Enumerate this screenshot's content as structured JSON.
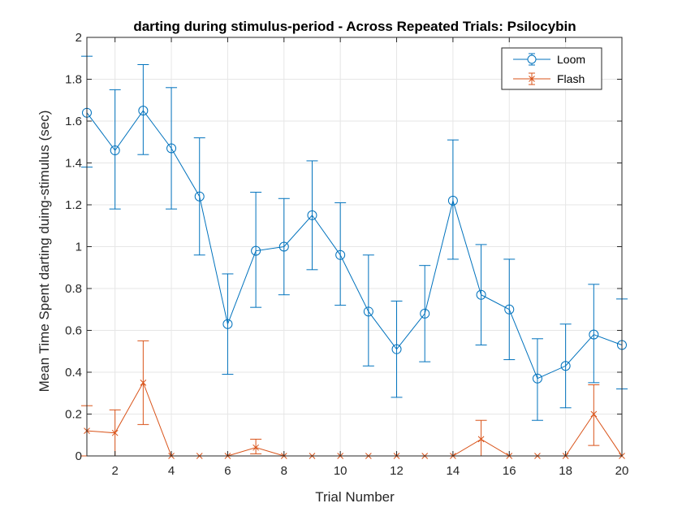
{
  "chart_data": {
    "type": "line",
    "title": "darting during stimulus-period - Across Repeated Trials: Psilocybin",
    "xlabel": "Trial Number",
    "ylabel": "Mean Time Spent darting duing-stimulus (sec)",
    "xlim": [
      1,
      20
    ],
    "ylim": [
      0,
      2
    ],
    "xticks": [
      2,
      4,
      6,
      8,
      10,
      12,
      14,
      16,
      18,
      20
    ],
    "yticks": [
      0,
      0.2,
      0.4,
      0.6,
      0.8,
      1,
      1.2,
      1.4,
      1.6,
      1.8,
      2
    ],
    "grid": true,
    "legend_position": "top-right",
    "x": [
      1,
      2,
      3,
      4,
      5,
      6,
      7,
      8,
      9,
      10,
      11,
      12,
      13,
      14,
      15,
      16,
      17,
      18,
      19,
      20
    ],
    "series": [
      {
        "name": "Loom",
        "color": "#0072BD",
        "marker": "circle",
        "values": [
          1.64,
          1.46,
          1.65,
          1.47,
          1.24,
          0.63,
          0.98,
          1.0,
          1.15,
          0.96,
          0.69,
          0.51,
          0.68,
          1.22,
          0.77,
          0.7,
          0.37,
          0.43,
          0.58,
          0.53
        ],
        "err_low": [
          1.38,
          1.18,
          1.44,
          1.18,
          0.96,
          0.39,
          0.71,
          0.77,
          0.89,
          0.72,
          0.43,
          0.28,
          0.45,
          0.94,
          0.53,
          0.46,
          0.17,
          0.23,
          0.35,
          0.32
        ],
        "err_high": [
          1.91,
          1.75,
          1.87,
          1.76,
          1.52,
          0.87,
          1.26,
          1.23,
          1.41,
          1.21,
          0.96,
          0.74,
          0.91,
          1.51,
          1.01,
          0.94,
          0.56,
          0.63,
          0.82,
          0.75
        ]
      },
      {
        "name": "Flash",
        "color": "#D95319",
        "marker": "x",
        "values": [
          0.12,
          0.11,
          0.35,
          0,
          0,
          0,
          0.04,
          0,
          0,
          0,
          0,
          0,
          0,
          0,
          0.08,
          0,
          0,
          0,
          0.2,
          0
        ],
        "err_low": [
          0,
          0,
          0.15,
          0,
          0,
          0,
          0.01,
          0,
          0,
          0,
          0,
          0,
          0,
          0,
          0,
          0,
          0,
          0,
          0.05,
          0
        ],
        "err_high": [
          0.24,
          0.22,
          0.55,
          0,
          0,
          0,
          0.08,
          0,
          0,
          0,
          0,
          0,
          0,
          0,
          0.17,
          0,
          0,
          0,
          0.34,
          0
        ]
      }
    ]
  }
}
